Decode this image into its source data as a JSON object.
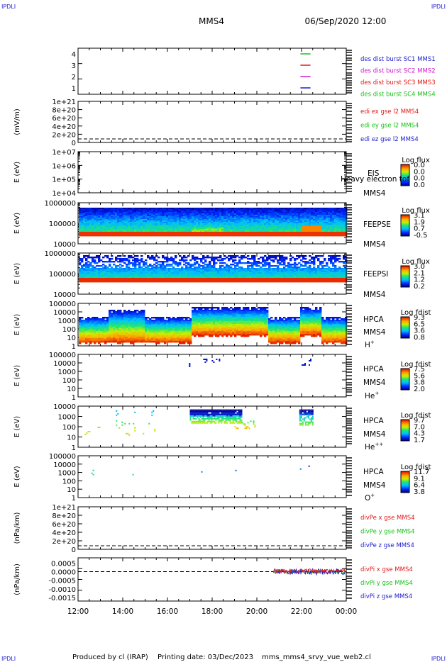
{
  "corner_labels": {
    "top_left": "IPDLI",
    "top_right": "IPDLI",
    "bottom_left": "IPDLI",
    "bottom_right": "IPDLI"
  },
  "header": {
    "spacecraft": "MMS4",
    "datetime": "06/Sep/2020 12:00"
  },
  "footer": {
    "produced_by": "Produced by cl (IRAP)",
    "printing_date": "Printing date: 03/Dec/2023",
    "script": "mms_mms4_srvy_vue_web2.cl"
  },
  "colors": {
    "blue": "#1a1ad0",
    "red": "#e01818",
    "green": "#18c018",
    "magenta": "#d018d0",
    "axis": "#000000"
  },
  "time_axis": {
    "ticks": [
      "12:00",
      "14:00",
      "16:00",
      "18:00",
      "20:00",
      "22:00",
      "00:00"
    ]
  },
  "chart_data": [
    {
      "type": "line",
      "id": "burst",
      "yticks": [
        "4",
        "3",
        "2",
        "1"
      ],
      "legend": [
        {
          "label": "des dist burst SC1 MMS1",
          "color": "#1a1ad0"
        },
        {
          "label": "des dist burst SC2 MMS2",
          "color": "#d018d0"
        },
        {
          "label": "des dist burst SC3 MMS3",
          "color": "#e01818"
        },
        {
          "label": "des dist burst SC4 MMS4",
          "color": "#18c018"
        }
      ],
      "segments": [
        {
          "sc": 4,
          "x": [
            21.95,
            22.4
          ],
          "color": "#18c018"
        },
        {
          "sc": 3,
          "x": [
            21.95,
            22.4
          ],
          "color": "#e01818"
        },
        {
          "sc": 2,
          "x": [
            21.95,
            22.4
          ],
          "color": "#d018d0"
        },
        {
          "sc": 1,
          "x": [
            21.95,
            22.4
          ],
          "color": "#1a1ad0"
        }
      ]
    },
    {
      "type": "line",
      "id": "edi",
      "ylabel": "(mV/m)",
      "yticks": [
        "1e+21",
        "8e+20",
        "6e+20",
        "4e+20",
        "2e+20",
        "0"
      ],
      "legend": [
        {
          "label": "edi ex gse l2 MMS4",
          "color": "#e01818"
        },
        {
          "label": "edi ey gse l2 MMS4",
          "color": "#18c018"
        },
        {
          "label": "edi ez gse l2 MMS4",
          "color": "#1a1ad0"
        }
      ]
    },
    {
      "type": "heatmap",
      "id": "eis",
      "ylabel": "E (eV)",
      "yticks": [
        "1e+07",
        "1e+06",
        "1e+05",
        "1e+04"
      ],
      "instrument": "EIS",
      "spacecraft": "MMS4",
      "note": "Heavy electron tof",
      "colorbar": {
        "title": "Log flux",
        "ticks": [
          "0.0",
          "0.0",
          "0.0",
          "0.0"
        ]
      }
    },
    {
      "type": "heatmap",
      "id": "feepse",
      "ylabel": "E (eV)",
      "yticks": [
        "1000000",
        "100000",
        "10000"
      ],
      "instrument": "FEEPSE",
      "spacecraft": "MMS4",
      "colorbar": {
        "title": "Log flux",
        "ticks": [
          "3.1",
          "1.9",
          "0.7",
          "-0.5"
        ]
      }
    },
    {
      "type": "heatmap",
      "id": "feepsi",
      "ylabel": "E (eV)",
      "yticks": [
        "1000000",
        "100000",
        "10000"
      ],
      "instrument": "FEEPSI",
      "spacecraft": "MMS4",
      "colorbar": {
        "title": "Log flux",
        "ticks": [
          "3.0",
          "2.1",
          "1.2",
          "0.2"
        ]
      }
    },
    {
      "type": "heatmap",
      "id": "hpca_h",
      "ylabel": "E (eV)",
      "yticks": [
        "100000",
        "10000",
        "1000",
        "100",
        "10",
        "1"
      ],
      "instrument": "HPCA",
      "spacecraft": "MMS4",
      "species": "H",
      "charge": "+",
      "colorbar": {
        "title": "Log fdist",
        "ticks": [
          "9.3",
          "6.5",
          "3.6",
          "0.8"
        ]
      }
    },
    {
      "type": "heatmap",
      "id": "hpca_he",
      "ylabel": "E (eV)",
      "yticks": [
        "100000",
        "10000",
        "1000",
        "100",
        "10",
        "1"
      ],
      "instrument": "HPCA",
      "spacecraft": "MMS4",
      "species": "He",
      "charge": "+",
      "colorbar": {
        "title": "Log fdist",
        "ticks": [
          "7.5",
          "5.6",
          "3.8",
          "2.0"
        ]
      }
    },
    {
      "type": "heatmap",
      "id": "hpca_he2",
      "ylabel": "E (eV)",
      "yticks": [
        "10000",
        "1000",
        "100",
        "10",
        "1"
      ],
      "instrument": "HPCA",
      "spacecraft": "MMS4",
      "species": "He",
      "charge": "++",
      "colorbar": {
        "title": "Log fdist",
        "ticks": [
          "9.7",
          "7.0",
          "4.3",
          "1.7"
        ]
      }
    },
    {
      "type": "heatmap",
      "id": "hpca_o",
      "ylabel": "E (eV)",
      "yticks": [
        "100000",
        "10000",
        "1000",
        "100",
        "10",
        "1"
      ],
      "instrument": "HPCA",
      "spacecraft": "MMS4",
      "species": "O",
      "charge": "+",
      "colorbar": {
        "title": "Log fdist",
        "ticks": [
          "11.7",
          "9.1",
          "6.4",
          "3.8"
        ]
      }
    },
    {
      "type": "line",
      "id": "divpe",
      "ylabel": "(nPa/km)",
      "yticks": [
        "1e+21",
        "8e+20",
        "6e+20",
        "4e+20",
        "2e+20",
        "0"
      ],
      "legend": [
        {
          "label": "divPe x gse MMS4",
          "color": "#e01818"
        },
        {
          "label": "divPe y gse MMS4",
          "color": "#18c018"
        },
        {
          "label": "divPe z gse MMS4",
          "color": "#1a1ad0"
        }
      ]
    },
    {
      "type": "line",
      "id": "divpi",
      "ylabel": "(nPa/km)",
      "yticks": [
        "0.0005",
        "0.0000",
        "-0.0005",
        "-0.0010",
        "-0.0015"
      ],
      "ylim": [
        -0.0017,
        0.0008
      ],
      "data_start_hour": 20.75,
      "legend": [
        {
          "label": "divPi x gse MMS4",
          "color": "#e01818"
        },
        {
          "label": "divPi y gse MMS4",
          "color": "#18c018"
        },
        {
          "label": "divPi z gse MMS4",
          "color": "#1a1ad0"
        }
      ]
    }
  ]
}
